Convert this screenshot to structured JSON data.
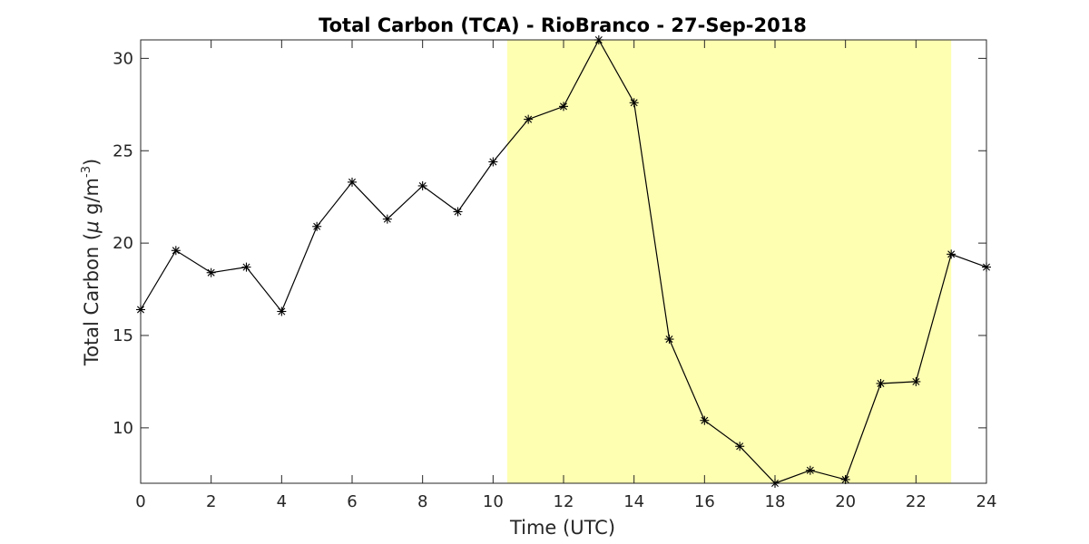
{
  "chart_data": {
    "type": "line",
    "title": "Total Carbon (TCA) - RioBranco - 27-Sep-2018",
    "xlabel": "Time (UTC)",
    "ylabel": {
      "prefix": "Total Carbon (",
      "mu": "μ",
      "unit": " g/m",
      "exp": "-3",
      "suffix": ")"
    },
    "xlim": [
      0,
      24
    ],
    "ylim": [
      7,
      31
    ],
    "xticks": [
      0,
      2,
      4,
      6,
      8,
      10,
      12,
      14,
      16,
      18,
      20,
      22,
      24
    ],
    "yticks": [
      10,
      15,
      20,
      25,
      30
    ],
    "grid": false,
    "highlight": {
      "x_start": 10.4,
      "x_end": 23.0,
      "color": "#ffffb2"
    },
    "series": [
      {
        "color": "#000000",
        "marker": "asterisk",
        "x": [
          0,
          1,
          2,
          3,
          4,
          5,
          6,
          7,
          8,
          9,
          10,
          11,
          12,
          13,
          14,
          15,
          16,
          17,
          18,
          19,
          20,
          21,
          22,
          23,
          24
        ],
        "values": [
          16.4,
          19.6,
          18.4,
          18.7,
          16.3,
          20.9,
          23.3,
          21.3,
          23.1,
          21.7,
          24.4,
          26.7,
          27.4,
          31.0,
          27.6,
          14.8,
          10.4,
          9.0,
          7.0,
          7.7,
          7.2,
          12.4,
          12.5,
          19.4,
          18.7
        ]
      }
    ]
  }
}
